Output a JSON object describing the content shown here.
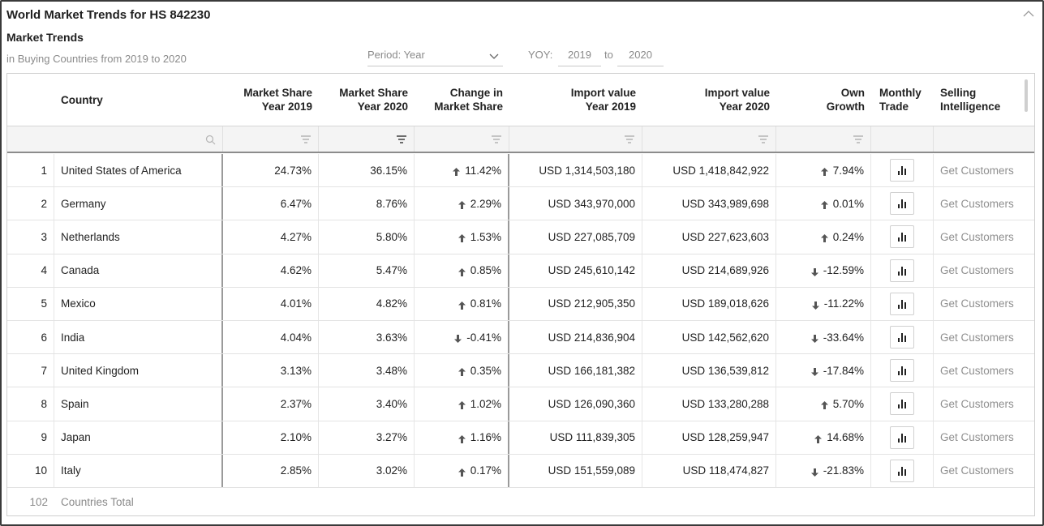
{
  "header": {
    "title": "World Market Trends for HS 842230",
    "subtitle": "Market Trends",
    "range_note": "in Buying Countries from 2019 to 2020"
  },
  "filters": {
    "period_label": "Period: Year",
    "yoy_label": "YOY:",
    "yoy_from": "2019",
    "to_label": "to",
    "yoy_to": "2020"
  },
  "table": {
    "columns": {
      "country": "Country",
      "ms2019": [
        "Market Share",
        "Year 2019"
      ],
      "ms2020": [
        "Market Share",
        "Year 2020"
      ],
      "change": [
        "Change in",
        "Market Share"
      ],
      "iv2019": [
        "Import value",
        "Year 2019"
      ],
      "iv2020": [
        "Import value",
        "Year 2020"
      ],
      "growth": [
        "Own",
        "Growth"
      ],
      "monthly": [
        "Monthly",
        "Trade"
      ],
      "selling": [
        "Selling",
        "Intelligence"
      ]
    },
    "rows": [
      {
        "rank": "1",
        "country": "United States of America",
        "ms2019": "24.73%",
        "ms2020": "36.15%",
        "change": "11.42%",
        "change_dir": "up",
        "iv2019": "USD 1,314,503,180",
        "iv2020": "USD 1,418,842,922",
        "growth": "7.94%",
        "growth_dir": "up",
        "action": "Get Customers"
      },
      {
        "rank": "2",
        "country": "Germany",
        "ms2019": "6.47%",
        "ms2020": "8.76%",
        "change": "2.29%",
        "change_dir": "up",
        "iv2019": "USD 343,970,000",
        "iv2020": "USD 343,989,698",
        "growth": "0.01%",
        "growth_dir": "up",
        "action": "Get Customers"
      },
      {
        "rank": "3",
        "country": "Netherlands",
        "ms2019": "4.27%",
        "ms2020": "5.80%",
        "change": "1.53%",
        "change_dir": "up",
        "iv2019": "USD 227,085,709",
        "iv2020": "USD 227,623,603",
        "growth": "0.24%",
        "growth_dir": "up",
        "action": "Get Customers"
      },
      {
        "rank": "4",
        "country": "Canada",
        "ms2019": "4.62%",
        "ms2020": "5.47%",
        "change": "0.85%",
        "change_dir": "up",
        "iv2019": "USD 245,610,142",
        "iv2020": "USD 214,689,926",
        "growth": "-12.59%",
        "growth_dir": "down",
        "action": "Get Customers"
      },
      {
        "rank": "5",
        "country": "Mexico",
        "ms2019": "4.01%",
        "ms2020": "4.82%",
        "change": "0.81%",
        "change_dir": "up",
        "iv2019": "USD 212,905,350",
        "iv2020": "USD 189,018,626",
        "growth": "-11.22%",
        "growth_dir": "down",
        "action": "Get Customers"
      },
      {
        "rank": "6",
        "country": "India",
        "ms2019": "4.04%",
        "ms2020": "3.63%",
        "change": "-0.41%",
        "change_dir": "down",
        "iv2019": "USD 214,836,904",
        "iv2020": "USD 142,562,620",
        "growth": "-33.64%",
        "growth_dir": "down",
        "action": "Get Customers"
      },
      {
        "rank": "7",
        "country": "United Kingdom",
        "ms2019": "3.13%",
        "ms2020": "3.48%",
        "change": "0.35%",
        "change_dir": "up",
        "iv2019": "USD 166,181,382",
        "iv2020": "USD 136,539,812",
        "growth": "-17.84%",
        "growth_dir": "down",
        "action": "Get Customers"
      },
      {
        "rank": "8",
        "country": "Spain",
        "ms2019": "2.37%",
        "ms2020": "3.40%",
        "change": "1.02%",
        "change_dir": "up",
        "iv2019": "USD 126,090,360",
        "iv2020": "USD 133,280,288",
        "growth": "5.70%",
        "growth_dir": "up",
        "action": "Get Customers"
      },
      {
        "rank": "9",
        "country": "Japan",
        "ms2019": "2.10%",
        "ms2020": "3.27%",
        "change": "1.16%",
        "change_dir": "up",
        "iv2019": "USD 111,839,305",
        "iv2020": "USD 128,259,947",
        "growth": "14.68%",
        "growth_dir": "up",
        "action": "Get Customers"
      },
      {
        "rank": "10",
        "country": "Italy",
        "ms2019": "2.85%",
        "ms2020": "3.02%",
        "change": "0.17%",
        "change_dir": "up",
        "iv2019": "USD 151,559,089",
        "iv2020": "USD 118,474,827",
        "growth": "-21.83%",
        "growth_dir": "down",
        "action": "Get Customers"
      }
    ],
    "footer": {
      "count": "102",
      "label": "Countries Total"
    }
  },
  "icons": {
    "collapse": "chevron-up-icon",
    "period": "chevron-down-icon",
    "search": "search-icon",
    "filter": "filter-icon",
    "up": "arrow-up-icon",
    "down": "arrow-down-icon",
    "chart": "bar-chart-icon"
  },
  "colors": {
    "text": "#222222",
    "muted": "#8a8a8a",
    "arrow": "#555555"
  }
}
